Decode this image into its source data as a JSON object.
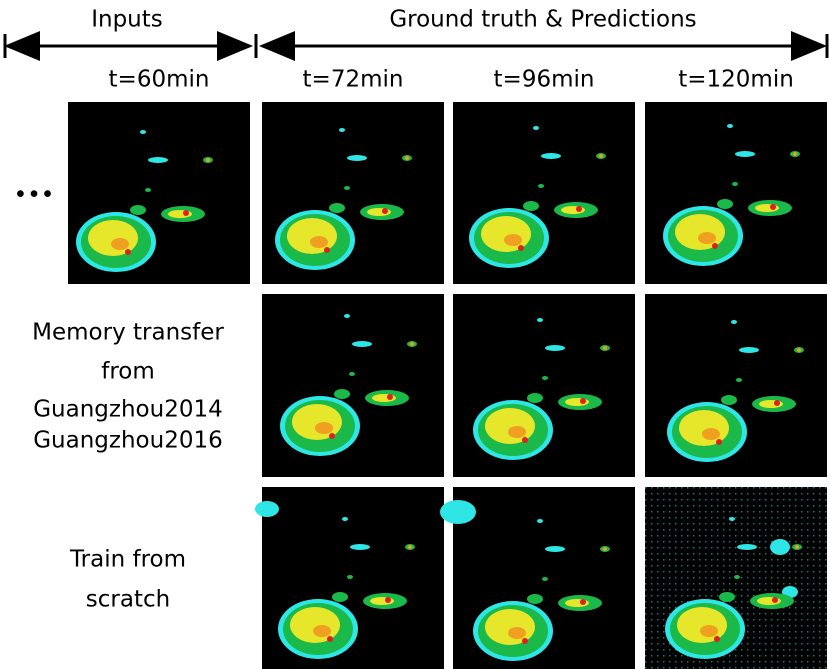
{
  "header": {
    "inputs": "Inputs",
    "outputs": "Ground truth & Predictions"
  },
  "times": [
    "t=60min",
    "t=72min",
    "t=96min",
    "t=120min"
  ],
  "ellipsis": "•••",
  "rows": [
    {
      "label": [
        "Memory transfer",
        "from",
        "Guangzhou2014",
        "Guangzhou2016"
      ]
    },
    {
      "label": [
        "Train from",
        "scratch"
      ]
    }
  ]
}
